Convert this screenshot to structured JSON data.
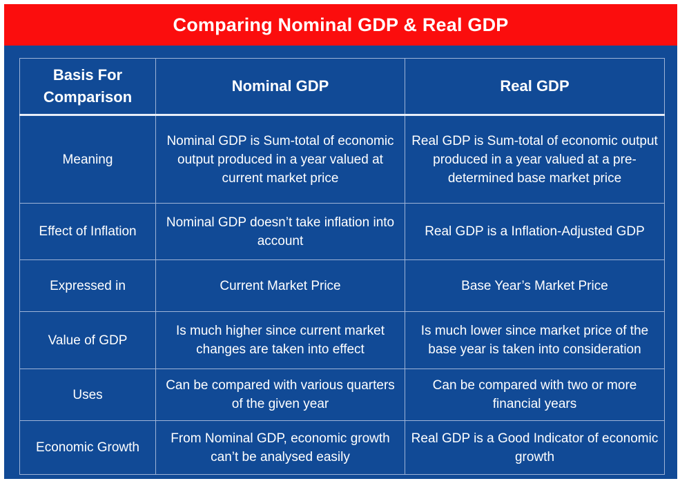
{
  "title": "Comparing Nominal GDP & Real GDP",
  "colors": {
    "banner": "#fb0d0d",
    "background": "#114a96",
    "text": "#ffffff",
    "gridline": "#9fb4d8"
  },
  "table": {
    "headers": [
      "Basis For Comparison",
      "Nominal GDP",
      "Real GDP"
    ],
    "rows": [
      {
        "basis": "Meaning",
        "nominal": "Nominal GDP is Sum-total of economic output produced in a year valued at current market price",
        "real": "Real GDP is Sum-total of economic output produced in a year valued at a pre-determined base market price"
      },
      {
        "basis": "Effect of Inflation",
        "nominal": "Nominal GDP doesn’t take inflation into account",
        "real": "Real GDP is a Inflation-Adjusted GDP"
      },
      {
        "basis": "Expressed in",
        "nominal": "Current Market Price",
        "real": "Base Year’s Market Price"
      },
      {
        "basis": "Value of GDP",
        "nominal": "Is much higher since current market changes are taken into effect",
        "real": "Is much lower since market price of the base year is taken into consideration"
      },
      {
        "basis": "Uses",
        "nominal": "Can be compared with various quarters of the given year",
        "real": "Can be compared with two or more financial years"
      },
      {
        "basis": "Economic Growth",
        "nominal": "From Nominal GDP, economic growth can’t be analysed easily",
        "real": "Real GDP is a Good Indicator of economic growth"
      }
    ]
  }
}
